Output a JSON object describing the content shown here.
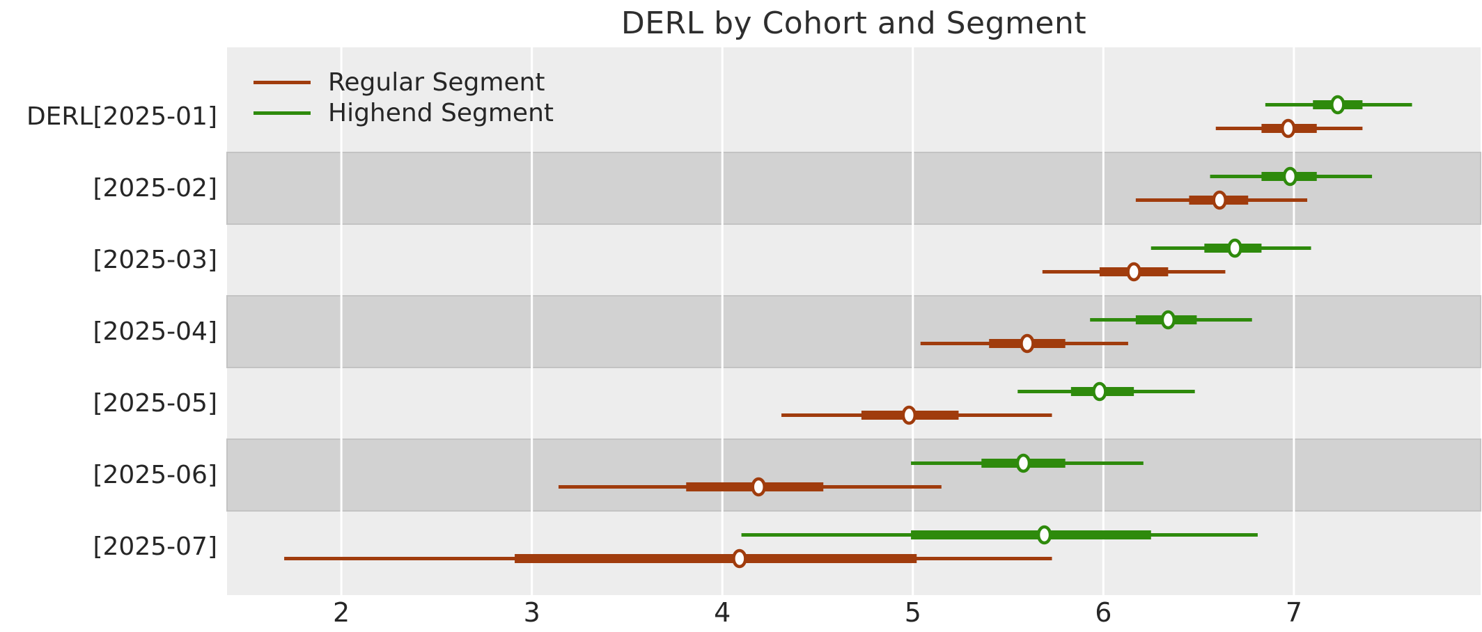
{
  "chart_data": {
    "type": "forest",
    "title": "DERL by Cohort and Segment",
    "xlabel": "",
    "ylabel": "",
    "xlim": [
      1.4,
      7.98
    ],
    "x_tick_labels": [
      "2",
      "3",
      "4",
      "5",
      "6",
      "7"
    ],
    "x_tick_values": [
      2,
      3,
      4,
      5,
      6,
      7
    ],
    "grid": "vertical-white-gridlines",
    "legend_position": "upper-left-inside",
    "legend": [
      {
        "label": "Regular Segment",
        "series_key": "regular",
        "color": "#a03c0d"
      },
      {
        "label": "Highend Segment",
        "series_key": "highend",
        "color": "#2e8a0c"
      }
    ],
    "rows": [
      {
        "y_label": "DERL[2025-01]",
        "highend": {
          "median": 7.23,
          "hdi_50": [
            7.1,
            7.36
          ],
          "hdi_94": [
            6.85,
            7.62
          ]
        },
        "regular": {
          "median": 6.97,
          "hdi_50": [
            6.83,
            7.12
          ],
          "hdi_94": [
            6.59,
            7.36
          ]
        }
      },
      {
        "y_label": "[2025-02]",
        "highend": {
          "median": 6.98,
          "hdi_50": [
            6.83,
            7.12
          ],
          "hdi_94": [
            6.56,
            7.41
          ]
        },
        "regular": {
          "median": 6.61,
          "hdi_50": [
            6.45,
            6.76
          ],
          "hdi_94": [
            6.17,
            7.07
          ]
        }
      },
      {
        "y_label": "[2025-03]",
        "highend": {
          "median": 6.69,
          "hdi_50": [
            6.53,
            6.83
          ],
          "hdi_94": [
            6.25,
            7.09
          ]
        },
        "regular": {
          "median": 6.16,
          "hdi_50": [
            5.98,
            6.34
          ],
          "hdi_94": [
            5.68,
            6.64
          ]
        }
      },
      {
        "y_label": "[2025-04]",
        "highend": {
          "median": 6.34,
          "hdi_50": [
            6.17,
            6.49
          ],
          "hdi_94": [
            5.93,
            6.78
          ]
        },
        "regular": {
          "median": 5.6,
          "hdi_50": [
            5.4,
            5.8
          ],
          "hdi_94": [
            5.04,
            6.13
          ]
        }
      },
      {
        "y_label": "[2025-05]",
        "highend": {
          "median": 5.98,
          "hdi_50": [
            5.83,
            6.16
          ],
          "hdi_94": [
            5.55,
            6.48
          ]
        },
        "regular": {
          "median": 4.98,
          "hdi_50": [
            4.73,
            5.24
          ],
          "hdi_94": [
            4.31,
            5.73
          ]
        }
      },
      {
        "y_label": "[2025-06]",
        "highend": {
          "median": 5.58,
          "hdi_50": [
            5.36,
            5.8
          ],
          "hdi_94": [
            4.99,
            6.21
          ]
        },
        "regular": {
          "median": 4.19,
          "hdi_50": [
            3.81,
            4.53
          ],
          "hdi_94": [
            3.14,
            5.15
          ]
        }
      },
      {
        "y_label": "[2025-07]",
        "highend": {
          "median": 5.69,
          "hdi_50": [
            4.99,
            6.25
          ],
          "hdi_94": [
            4.1,
            6.81
          ]
        },
        "regular": {
          "median": 4.09,
          "hdi_50": [
            2.91,
            5.02
          ],
          "hdi_94": [
            1.7,
            5.73
          ]
        }
      }
    ],
    "colors": {
      "regular": "#a03c0d",
      "highend": "#2e8a0c",
      "plot_background": "#ededed",
      "band": "#d2d2d2",
      "band_edge": "#c3c3c3",
      "gridline": "#ffffff",
      "marker_fill": "#fdfdfd",
      "text": "#262626",
      "figure_background": "#ffffff"
    }
  }
}
